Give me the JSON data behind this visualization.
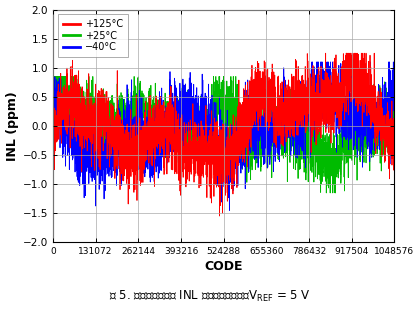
{
  "xlabel": "CODE",
  "ylabel": "INL (ppm)",
  "xlim": [
    0,
    1048576
  ],
  "ylim": [
    -2.0,
    2.0
  ],
  "yticks": [
    -2.0,
    -1.5,
    -1.0,
    -0.5,
    0.0,
    0.5,
    1.0,
    1.5,
    2.0
  ],
  "xticks": [
    0,
    131072,
    262144,
    393216,
    524288,
    655360,
    786432,
    917504,
    1048576
  ],
  "xtick_labels": [
    "0",
    "131072",
    "262144",
    "393216",
    "524288",
    "655360",
    "786432",
    "917504",
    "1048576"
  ],
  "legend": [
    {
      "label": "+125°C",
      "color": "#ff0000"
    },
    {
      "label": "+25°C",
      "color": "#00bb00"
    },
    {
      "label": "−40°C",
      "color": "#0000ff"
    }
  ],
  "bg_color": "#ffffff",
  "plot_bg_color": "#ffffff",
  "grid_color": "#aaaaaa",
  "seed": 42,
  "n_points": 3000,
  "line_width": 0.6
}
